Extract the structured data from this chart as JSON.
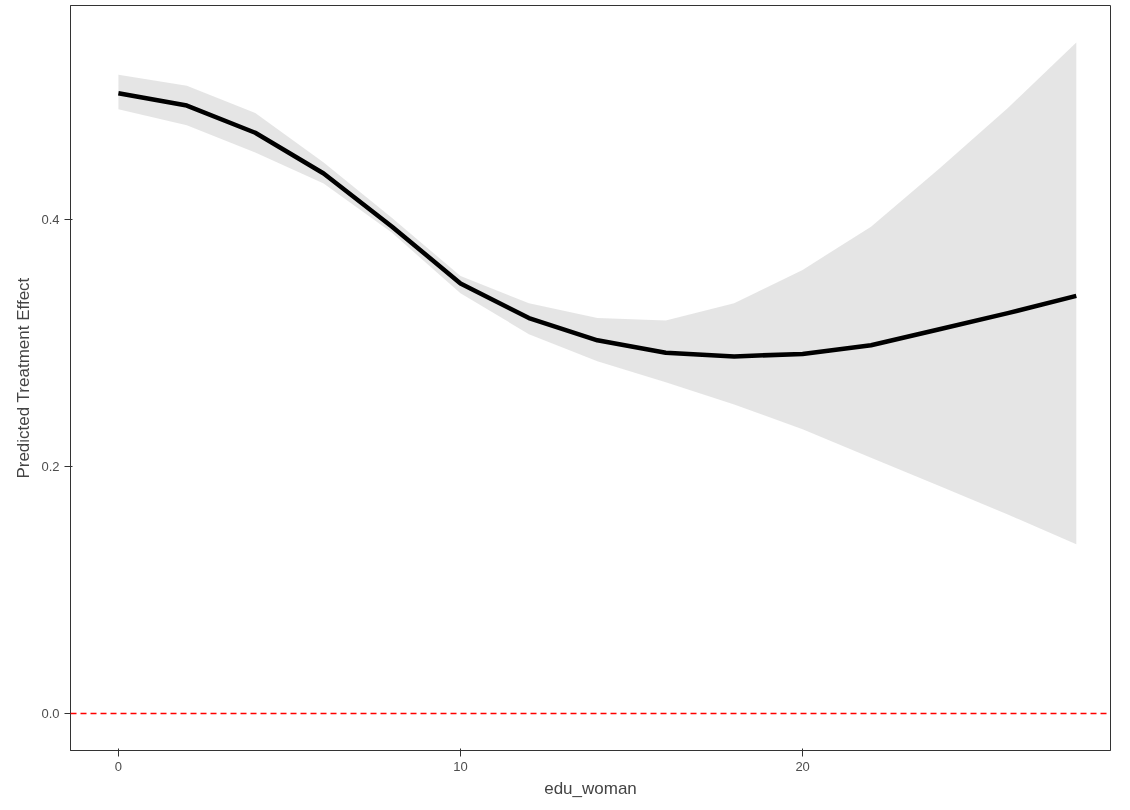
{
  "chart_data": {
    "type": "line",
    "xlabel": "edu_woman",
    "ylabel": "Predicted Treatment Effect",
    "xlim": [
      -1.4,
      29.0
    ],
    "ylim": [
      -0.03,
      0.573
    ],
    "xticks": [
      0,
      10,
      20
    ],
    "yticks": [
      {
        "value": 0,
        "label": "0.0"
      },
      {
        "value": 0.2,
        "label": "0.2"
      },
      {
        "value": 0.4,
        "label": "0.4"
      }
    ],
    "grid": false,
    "marker": "none",
    "line_style": "solid",
    "series": [
      {
        "color": "#000000",
        "x": [
          0,
          2,
          4,
          6,
          8,
          10,
          12,
          14,
          16,
          18,
          20,
          22,
          24,
          26,
          28
        ],
        "values": [
          0.502,
          0.492,
          0.47,
          0.437,
          0.394,
          0.348,
          0.32,
          0.302,
          0.292,
          0.289,
          0.291,
          0.298,
          0.311,
          0.324,
          0.338
        ],
        "upper": [
          0.517,
          0.508,
          0.486,
          0.446,
          0.401,
          0.354,
          0.332,
          0.32,
          0.318,
          0.332,
          0.359,
          0.394,
          0.441,
          0.49,
          0.543
        ],
        "lower": [
          0.489,
          0.476,
          0.454,
          0.429,
          0.389,
          0.34,
          0.307,
          0.285,
          0.268,
          0.25,
          0.23,
          0.207,
          0.184,
          0.161,
          0.137
        ]
      }
    ],
    "ref_lines": [
      {
        "axis": "y",
        "value": 0,
        "color": "#ff0000",
        "line_style": "dashed"
      }
    ]
  }
}
